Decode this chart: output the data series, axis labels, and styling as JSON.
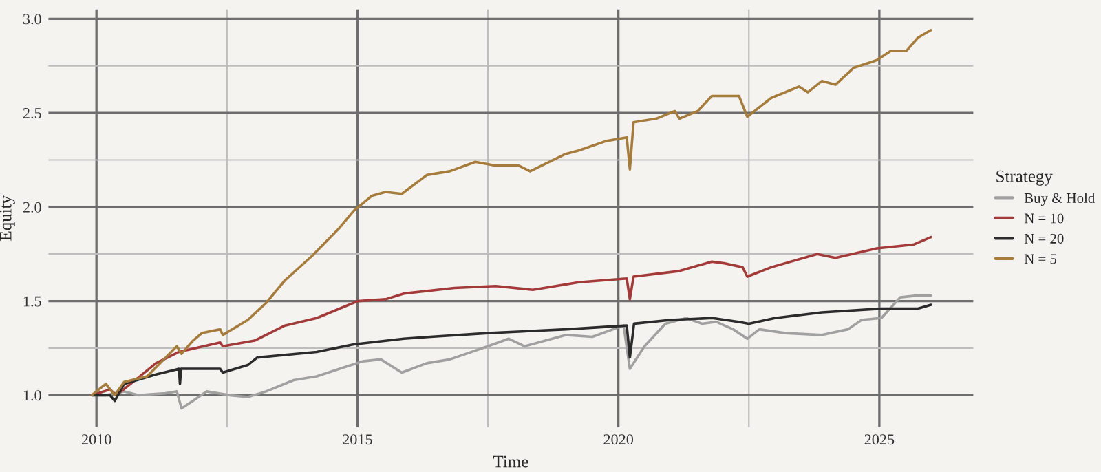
{
  "chart_data": {
    "type": "line",
    "xlabel": "Time",
    "ylabel": "Equity",
    "legend_title": "Strategy",
    "legend": "right",
    "grid": true,
    "xlim": [
      2009.08,
      2026.8
    ],
    "ylim": [
      0.83,
      3.05
    ],
    "xticks": [
      2010,
      {
        "value": 2012.5,
        "label": null
      },
      2015,
      {
        "value": 2017.5,
        "label": null
      },
      2020,
      {
        "value": 2022.5,
        "label": null
      },
      2025
    ],
    "yticks": [
      {
        "value": 1,
        "label": "1.0"
      },
      {
        "value": 1.25,
        "label": null
      },
      1.5,
      {
        "value": 1.75,
        "label": null
      },
      {
        "value": 2,
        "label": "2.0"
      },
      {
        "value": 2.25,
        "label": null
      },
      2.5,
      {
        "value": 2.75,
        "label": null
      },
      {
        "value": 3,
        "label": "3.0"
      }
    ],
    "series": [
      {
        "name": "Buy & Hold",
        "color": "#a0a0a0",
        "x": [
          2009.91,
          2010.18,
          2010.53,
          2010.8,
          2011.32,
          2011.54,
          2011.63,
          2011.85,
          2012.11,
          2012.55,
          2012.9,
          2013.25,
          2013.78,
          2014.22,
          2014.66,
          2015.1,
          2015.45,
          2015.85,
          2016.33,
          2016.77,
          2017.5,
          2017.9,
          2018.2,
          2019.0,
          2019.5,
          2020.1,
          2020.22,
          2020.5,
          2020.9,
          2021.3,
          2021.6,
          2021.87,
          2022.2,
          2022.47,
          2022.7,
          2023.2,
          2023.9,
          2024.4,
          2024.66,
          2025.04,
          2025.4,
          2025.74,
          2025.99
        ],
        "values": [
          1.0,
          1.0,
          1.02,
          1.0,
          1.01,
          1.02,
          0.93,
          0.97,
          1.02,
          1.0,
          0.99,
          1.02,
          1.08,
          1.1,
          1.14,
          1.18,
          1.19,
          1.12,
          1.17,
          1.19,
          1.26,
          1.3,
          1.26,
          1.32,
          1.31,
          1.37,
          1.14,
          1.26,
          1.38,
          1.41,
          1.38,
          1.39,
          1.35,
          1.3,
          1.35,
          1.33,
          1.32,
          1.35,
          1.4,
          1.41,
          1.52,
          1.53,
          1.53
        ]
      },
      {
        "name": "N = 10",
        "color": "#a33a3a",
        "x": [
          2009.91,
          2010.26,
          2010.38,
          2010.7,
          2011.14,
          2011.58,
          2012.37,
          2012.42,
          2013.03,
          2013.61,
          2014.22,
          2015.01,
          2015.54,
          2015.89,
          2016.86,
          2017.65,
          2018.36,
          2019.24,
          2020.16,
          2020.22,
          2020.29,
          2021.17,
          2021.79,
          2022.05,
          2022.38,
          2022.47,
          2022.93,
          2023.81,
          2024.16,
          2024.95,
          2025.65,
          2025.99
        ],
        "values": [
          1.0,
          1.03,
          1.0,
          1.07,
          1.17,
          1.23,
          1.28,
          1.26,
          1.29,
          1.37,
          1.41,
          1.5,
          1.51,
          1.54,
          1.57,
          1.58,
          1.56,
          1.6,
          1.62,
          1.51,
          1.63,
          1.66,
          1.71,
          1.7,
          1.68,
          1.63,
          1.68,
          1.75,
          1.73,
          1.78,
          1.8,
          1.84
        ]
      },
      {
        "name": "N = 20",
        "color": "#2b2b2b",
        "x": [
          2009.91,
          2010.26,
          2010.35,
          2010.53,
          2011.14,
          2011.58,
          2011.6,
          2011.62,
          2012.37,
          2012.42,
          2012.9,
          2013.08,
          2014.22,
          2014.93,
          2015.89,
          2016.4,
          2017.5,
          2019.0,
          2020.16,
          2020.22,
          2020.3,
          2021.0,
          2021.8,
          2022.3,
          2022.5,
          2023.0,
          2023.9,
          2025.04,
          2025.74,
          2025.99
        ],
        "values": [
          1.0,
          1.0,
          0.97,
          1.06,
          1.11,
          1.14,
          1.06,
          1.14,
          1.14,
          1.12,
          1.16,
          1.2,
          1.23,
          1.27,
          1.3,
          1.31,
          1.33,
          1.35,
          1.37,
          1.2,
          1.38,
          1.4,
          1.41,
          1.39,
          1.38,
          1.41,
          1.44,
          1.46,
          1.46,
          1.48
        ]
      },
      {
        "name": "N = 5",
        "color": "#a67c3d",
        "x": [
          2009.91,
          2010.18,
          2010.35,
          2010.53,
          2010.97,
          2011.54,
          2011.63,
          2011.85,
          2012.02,
          2012.37,
          2012.42,
          2012.9,
          2013.25,
          2013.61,
          2014.13,
          2014.66,
          2014.93,
          2015.28,
          2015.54,
          2015.85,
          2016.33,
          2016.77,
          2017.26,
          2017.65,
          2018.09,
          2018.31,
          2018.97,
          2019.24,
          2019.76,
          2020.16,
          2020.22,
          2020.29,
          2020.73,
          2021.08,
          2021.17,
          2021.52,
          2021.79,
          2022.31,
          2022.47,
          2022.93,
          2023.46,
          2023.63,
          2023.9,
          2024.16,
          2024.51,
          2024.95,
          2025.22,
          2025.52,
          2025.74,
          2025.99
        ],
        "values": [
          1.0,
          1.06,
          1.0,
          1.07,
          1.1,
          1.26,
          1.22,
          1.29,
          1.33,
          1.35,
          1.32,
          1.4,
          1.49,
          1.61,
          1.74,
          1.89,
          1.98,
          2.06,
          2.08,
          2.07,
          2.17,
          2.19,
          2.24,
          2.22,
          2.22,
          2.19,
          2.28,
          2.3,
          2.35,
          2.37,
          2.2,
          2.45,
          2.47,
          2.51,
          2.47,
          2.51,
          2.59,
          2.59,
          2.48,
          2.58,
          2.64,
          2.61,
          2.67,
          2.65,
          2.74,
          2.78,
          2.83,
          2.83,
          2.9,
          2.94
        ]
      }
    ]
  }
}
